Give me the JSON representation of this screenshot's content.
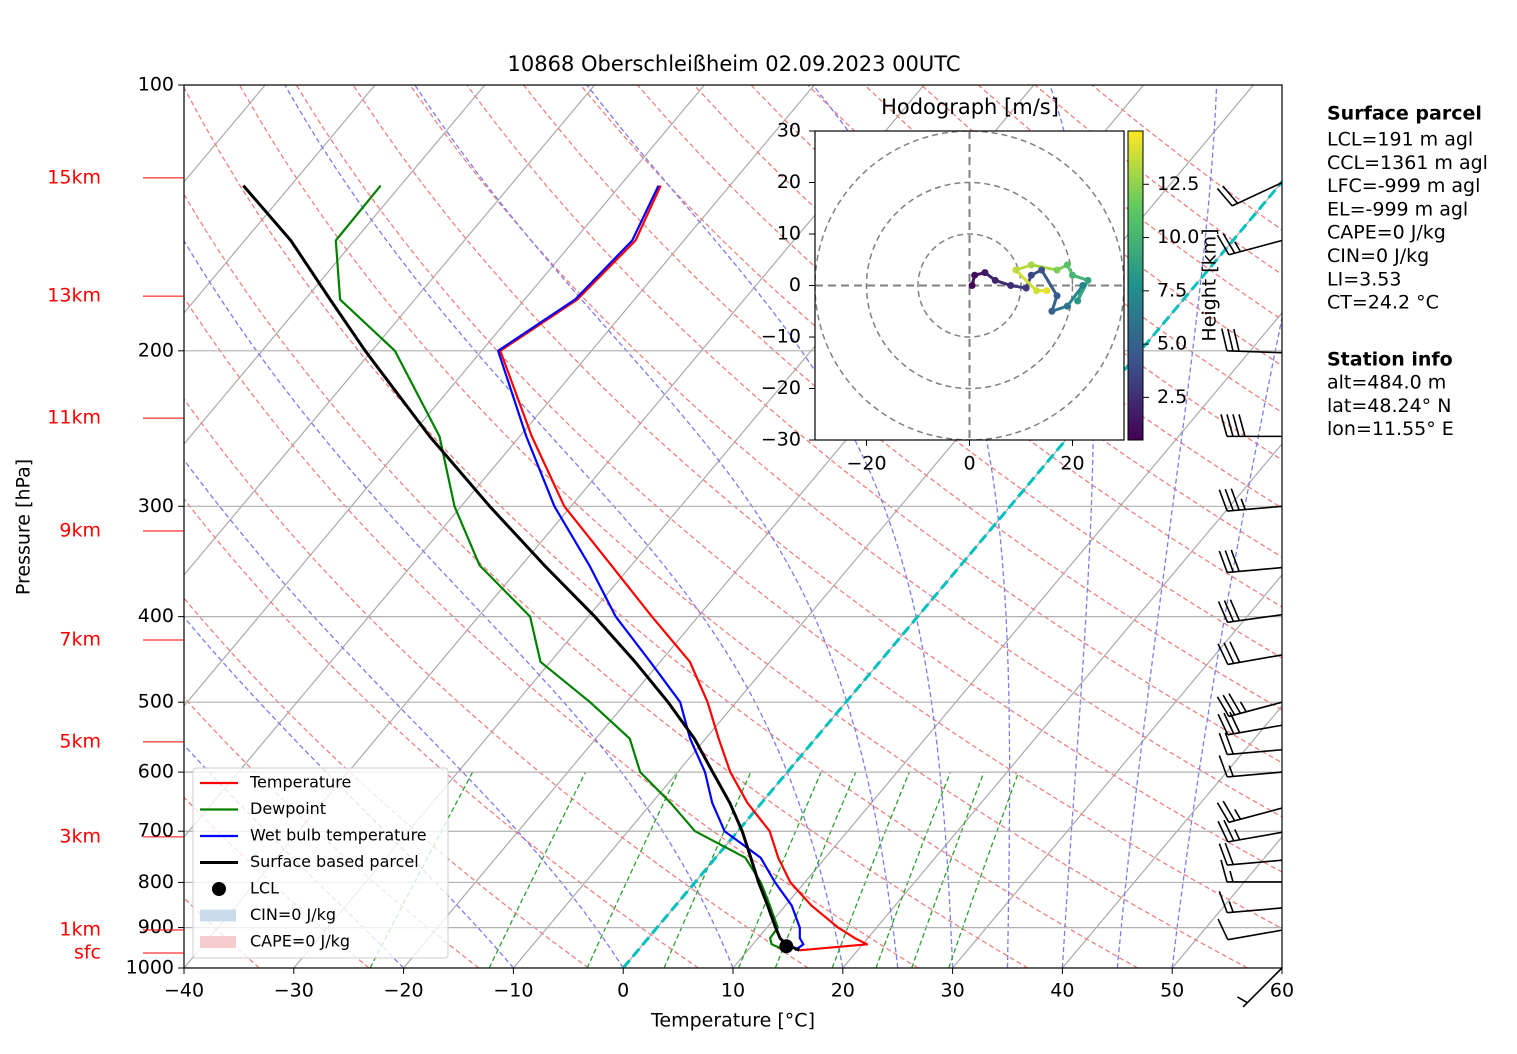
{
  "chart_data": [
    {
      "type": "skewt",
      "title": "10868 Oberschleißheim 02.09.2023 00UTC",
      "xlabel": "Temperature [°C]",
      "ylabel": "Pressure [hPa]",
      "xlim": [
        -40,
        60
      ],
      "xticks": [
        {
          "value": -40,
          "label": "−40"
        },
        {
          "value": -30,
          "label": "−30"
        },
        {
          "value": -20,
          "label": "−20"
        },
        {
          "value": -10,
          "label": "−10"
        },
        0,
        10,
        20,
        30,
        40,
        50,
        60
      ],
      "ylim": [
        1000,
        100
      ],
      "yticks": [
        100,
        200,
        300,
        400,
        500,
        600,
        700,
        800,
        900,
        1000
      ],
      "ylog": true,
      "grid": true,
      "pressure": [
        955,
        940,
        925,
        900,
        850,
        800,
        750,
        700,
        650,
        600,
        550,
        500,
        450,
        400,
        350,
        300,
        250,
        200,
        175,
        150,
        130
      ],
      "series": [
        {
          "name": "Temperature",
          "color": "#ff0000",
          "values": [
            14.7,
            20.4,
            18.8,
            16.5,
            12.4,
            8.7,
            5.7,
            2.9,
            -1.3,
            -5.2,
            -8.8,
            -12.6,
            -17.3,
            -24.2,
            -31.8,
            -40.6,
            -48.9,
            -58.3,
            -55.2,
            -54.4,
            -56.3
          ]
        },
        {
          "name": "Dewpoint",
          "color": "#008000",
          "values": [
            13.4,
            11.7,
            11.1,
            11.0,
            8.6,
            6.0,
            2.7,
            -3.9,
            -8.3,
            -13.4,
            -16.9,
            -23.3,
            -30.9,
            -35.3,
            -43.8,
            -50.6,
            -57.3,
            -67.9,
            -76.8,
            -81.7,
            -81.8
          ]
        },
        {
          "name": "Wet bulb temperature",
          "color": "#0000ff",
          "values": [
            14.3,
            14.6,
            13.8,
            13.0,
            10.6,
            7.3,
            4.1,
            -1.2,
            -4.5,
            -7.5,
            -11.4,
            -15.1,
            -20.9,
            -27.5,
            -33.8,
            -41.5,
            -49.4,
            -58.5,
            -55.4,
            -54.7,
            -56.5
          ]
        },
        {
          "name": "Surface based parcel",
          "color": "#000000",
          "values": [
            14.7,
            13.0,
            12.0,
            10.8,
            8.4,
            5.8,
            3.2,
            0.4,
            -2.9,
            -6.8,
            -11.0,
            -16.2,
            -22.3,
            -29.4,
            -37.9,
            -47.4,
            -58.2,
            -70.6,
            -77.7,
            -85.8,
            -94.3
          ]
        }
      ],
      "lcl": {
        "name": "LCL",
        "color": "#000000",
        "pressure": 945,
        "temperature": 13.2
      },
      "cin": {
        "name": "CIN=0 J/kg",
        "color": "#c9dceb"
      },
      "cape": {
        "name": "CAPE=0 J/kg",
        "color": "#f6cccf"
      },
      "freezing_isotherm": {
        "value": 0,
        "color": "#00bfbf"
      },
      "height_axis": {
        "color": "#ff0000",
        "labels": [
          "15km",
          "13km",
          "11km",
          "9km",
          "7km",
          "5km",
          "3km",
          "1km",
          "sfc"
        ],
        "pressure": [
          127.4,
          173.4,
          238.4,
          320.0,
          425.1,
          554.6,
          710.5,
          905.7,
          961.6
        ]
      },
      "wind": {
        "pressure": [
          1000,
          906,
          855,
          799,
          755,
          702,
          659,
          600,
          566,
          531,
          500,
          442,
          398,
          352,
          300,
          250,
          201,
          150,
          129
        ],
        "speed": [
          5,
          10,
          15,
          15,
          20,
          25,
          25,
          15,
          20,
          30,
          35,
          30,
          30,
          30,
          35,
          40,
          30,
          25,
          20
        ],
        "direction": [
          225,
          260,
          265,
          270,
          265,
          260,
          255,
          265,
          265,
          260,
          255,
          260,
          262,
          265,
          265,
          270,
          272,
          255,
          245
        ]
      },
      "surface_parcel": {
        "title": "Surface parcel",
        "lines": [
          "LCL=191 m agl",
          "CCL=1361 m agl",
          "LFC=-999 m agl",
          "EL=-999 m agl",
          "CAPE=0 J/kg",
          "CIN=0 J/kg",
          "LI=3.53",
          "CT=24.2 °C"
        ]
      },
      "station_info": {
        "title": "Station info",
        "lines": [
          "alt=484.0 m",
          "lat=48.24° N",
          "lon=11.55° E"
        ]
      }
    },
    {
      "type": "hodograph",
      "title": "Hodograph [m/s]",
      "xlim": [
        -30,
        30
      ],
      "xticks": [
        {
          "value": -20,
          "label": "−20"
        },
        0,
        20
      ],
      "ylim": [
        -30,
        30
      ],
      "yticks": [
        {
          "value": -30,
          "label": "−30"
        },
        {
          "value": -20,
          "label": "−20"
        },
        {
          "value": -10,
          "label": "−10"
        },
        0,
        10,
        20,
        30
      ],
      "colorbar_label": "Height [km]",
      "clim": [
        0.5,
        15.0
      ],
      "cticks": [
        2.5,
        {
          "value": 5,
          "label": "5.0"
        },
        7.5,
        {
          "value": 10,
          "label": "10.0"
        },
        12.5
      ],
      "height": [
        0.6,
        1.0,
        1.5,
        2.0,
        2.5,
        3.0,
        3.5,
        4.0,
        4.5,
        5.0,
        6.0,
        7.0,
        8.0,
        9.0,
        10.0,
        11.0,
        12.0,
        13.0,
        13.5,
        14.0,
        14.5
      ],
      "u": [
        0.5,
        1,
        3,
        5,
        8,
        11,
        12,
        14,
        17,
        16,
        19,
        22,
        21,
        23,
        20,
        19,
        17,
        12,
        9,
        13,
        15
      ],
      "v": [
        0,
        2,
        2.5,
        1,
        0,
        -0.5,
        2,
        3,
        -2,
        -5,
        -4,
        0,
        -3,
        1,
        2,
        4,
        3,
        4,
        3,
        -1,
        -1
      ]
    }
  ]
}
